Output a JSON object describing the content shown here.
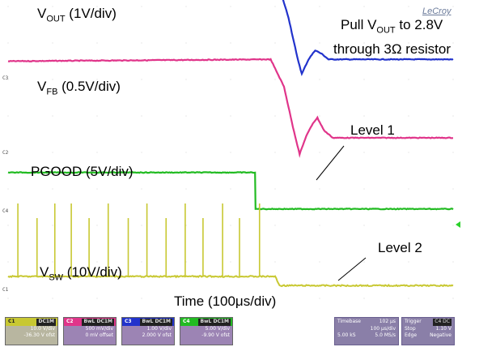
{
  "brand": "LeCroy",
  "labels": {
    "vout_pre": "V",
    "vout_sub": "OUT",
    "vout_post": " (1V/div)",
    "vfb_pre": "V",
    "vfb_sub": "FB",
    "vfb_post": " (0.5V/div)",
    "pgood": "PGOOD (5V/div)",
    "vsw_pre": "V",
    "vsw_sub": "SW",
    "vsw_post": " (10V/div)",
    "note_l1_pre": "Pull V",
    "note_l1_sub": "OUT",
    "note_l1_post": " to 2.8V",
    "note_l2": "through 3Ω resistor",
    "level1": "Level 1",
    "level2": "Level 2",
    "time": "Time (100μs/div)"
  },
  "channel_markers": [
    "C1",
    "C2",
    "C3",
    "C4"
  ],
  "channels": [
    {
      "id": "C1",
      "color": "#c8c832",
      "title": "C1",
      "mode": "DC1M",
      "lines": [
        "10.0 V/div",
        "-36.30 V ofst"
      ]
    },
    {
      "id": "C2",
      "color": "#e0358a",
      "title": "C2",
      "mode": "BwL DC1M",
      "lines": [
        "500 mV/div",
        "0 mV offset"
      ]
    },
    {
      "id": "C3",
      "color": "#2233cc",
      "title": "C3",
      "mode": "BwL DC1M",
      "lines": [
        "1.00 V/div",
        "2.000 V ofst"
      ]
    },
    {
      "id": "C4",
      "color": "#22bb22",
      "title": "C4",
      "mode": "BwL DC1M",
      "lines": [
        "5.00 V/div",
        "-9.90 V ofst"
      ]
    }
  ],
  "timebase": {
    "title": "Timebase",
    "value": "102 μs",
    "row1": [
      "",
      "100 μs/div"
    ],
    "row2": [
      "5.00 kS",
      "5.0 MS/s"
    ]
  },
  "trigger": {
    "title": "Trigger",
    "tag": "C4 DC",
    "row1": [
      "Stop",
      "1.10 V"
    ],
    "row2": [
      "Edge",
      "Negative"
    ]
  },
  "chart_data": {
    "type": "line",
    "title": "",
    "xlabel": "Time (100μs/div)",
    "x_units": "divisions",
    "x_range": [
      0,
      10
    ],
    "series": [
      {
        "name": "VOUT (1V/div)",
        "color": "#2233cc",
        "x": [
          0,
          5.9,
          6.1,
          6.3,
          6.5,
          6.6,
          6.75,
          6.9,
          7.05,
          7.2,
          7.5,
          10
        ],
        "y_div": [
          8.55,
          8.65,
          8.5,
          7.7,
          6.6,
          6.15,
          6.55,
          6.8,
          6.7,
          6.55,
          6.55,
          6.55
        ]
      },
      {
        "name": "VFB (0.5V/div)",
        "color": "#e0358a",
        "x": [
          0,
          5.9,
          6.2,
          6.4,
          6.55,
          6.7,
          6.85,
          6.95,
          7.1,
          7.3,
          10
        ],
        "y_div": [
          6.5,
          6.55,
          5.8,
          4.7,
          3.95,
          4.45,
          4.8,
          4.95,
          4.6,
          4.4,
          4.4
        ]
      },
      {
        "name": "PGOOD (5V/div)",
        "color": "#22bb22",
        "x": [
          0,
          5.55,
          5.56,
          10
        ],
        "y_div": [
          3.45,
          3.45,
          2.45,
          2.45
        ]
      },
      {
        "name": "VSW (10V/div)",
        "color": "#c8c832",
        "x": [
          0,
          6.0,
          6.1,
          10
        ],
        "y_div": [
          0.6,
          0.6,
          0.35,
          0.35
        ]
      }
    ]
  }
}
